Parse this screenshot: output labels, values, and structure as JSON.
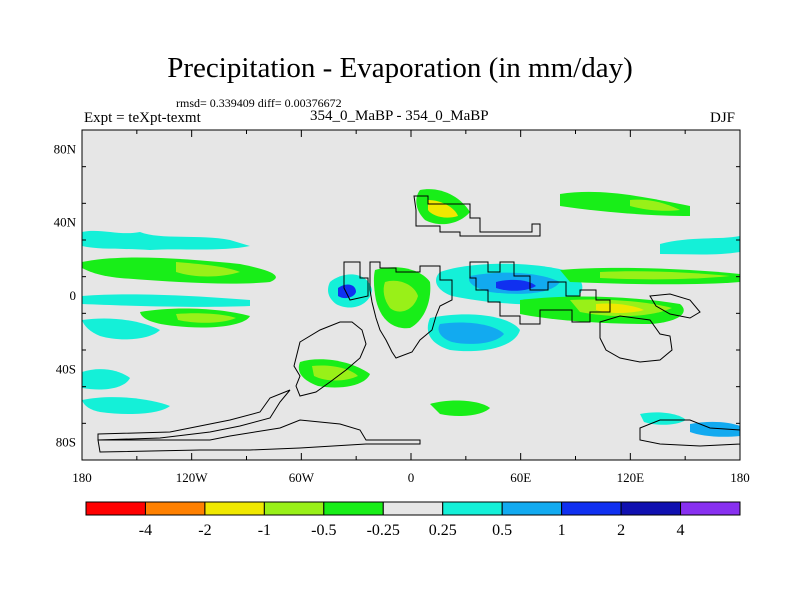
{
  "header": {
    "title": "Precipitation - Evaporation (in mm/day)",
    "stats": "rmsd= 0.339409 diff= 0.00376672",
    "experiment": "Expt = teXpt-texmt",
    "runs": "354_0_MaBP - 354_0_MaBP",
    "season": "DJF"
  },
  "axes": {
    "x_ticks": [
      "180",
      "120W",
      "60W",
      "0",
      "60E",
      "120E",
      "180"
    ],
    "y_ticks": [
      "80N",
      "40N",
      "0",
      "40S",
      "80S"
    ]
  },
  "colorbar": {
    "labels": [
      "-4",
      "-2",
      "-1",
      "-0.5",
      "-0.25",
      "0.25",
      "0.5",
      "1",
      "2",
      "4"
    ],
    "colors": [
      "#ff0000",
      "#ff8000",
      "#f0e800",
      "#99f018",
      "#18ee18",
      "#e6e6e6",
      "#14f0d8",
      "#12aaf0",
      "#1030f0",
      "#1010b0",
      "#8830f0"
    ]
  },
  "map": {
    "background_color": "#e6e6e6",
    "coastline_color": "#000000"
  }
}
